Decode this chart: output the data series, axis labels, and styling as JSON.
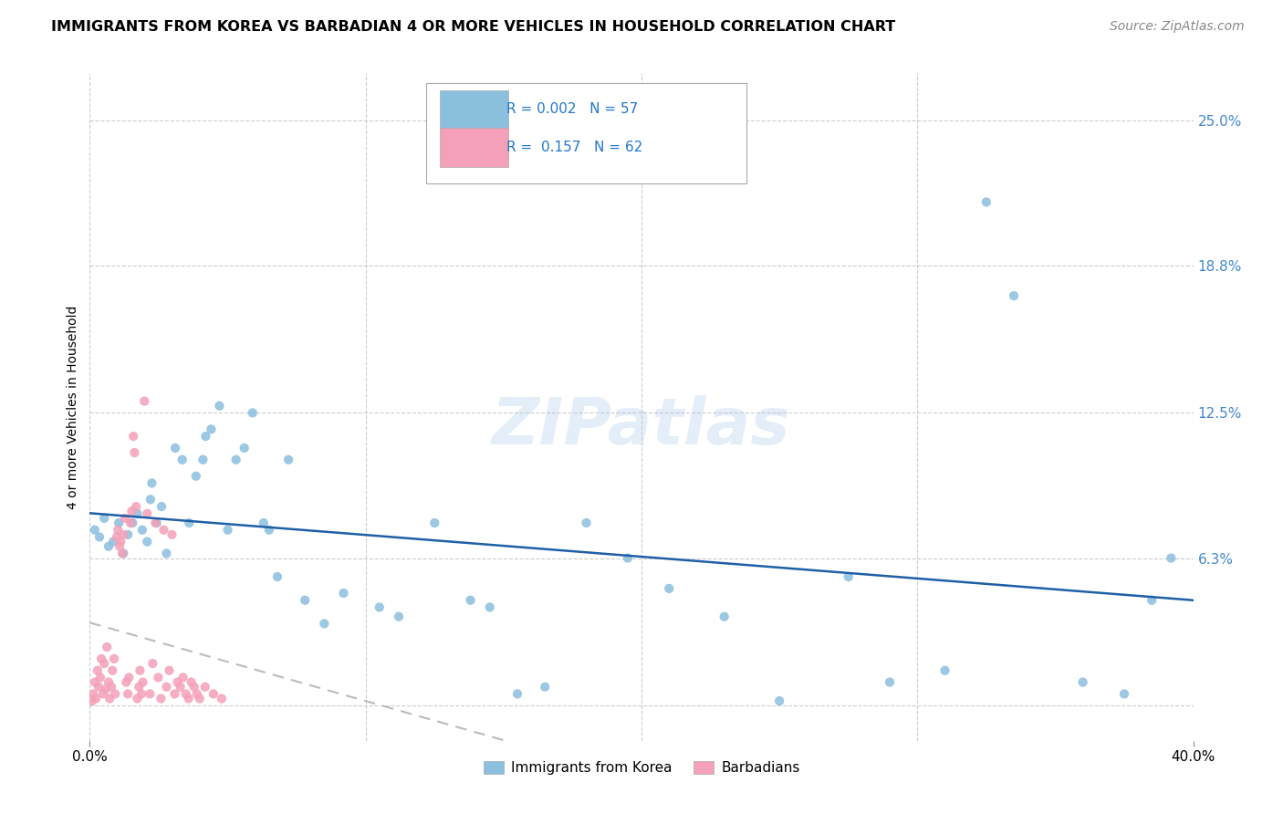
{
  "title": "IMMIGRANTS FROM KOREA VS BARBADIAN 4 OR MORE VEHICLES IN HOUSEHOLD CORRELATION CHART",
  "source": "Source: ZipAtlas.com",
  "ylabel": "4 or more Vehicles in Household",
  "korea_R": "0.002",
  "korea_N": "57",
  "barbadian_R": "0.157",
  "barbadian_N": "62",
  "korea_color": "#8bbfde",
  "barbadian_color": "#f4a0b8",
  "korea_line_color": "#1f5fa6",
  "barbadian_line_color": "#e05080",
  "watermark": "ZIPatlas",
  "xmin": 0.0,
  "xmax": 40.0,
  "ymin": -1.5,
  "ymax": 27.0,
  "ytick_vals": [
    0.0,
    6.3,
    12.5,
    18.8,
    25.0
  ],
  "ytick_labels": [
    "",
    "6.3%",
    "12.5%",
    "18.8%",
    "25.0%"
  ],
  "korea_x": [
    0.18,
    0.35,
    0.52,
    0.68,
    0.85,
    1.05,
    1.22,
    1.38,
    1.55,
    1.72,
    1.9,
    2.08,
    2.25,
    2.42,
    2.6,
    2.78,
    3.1,
    3.35,
    3.6,
    3.85,
    4.1,
    4.4,
    4.7,
    5.0,
    5.3,
    5.6,
    5.9,
    6.3,
    6.8,
    7.2,
    7.8,
    8.5,
    9.2,
    10.5,
    11.2,
    12.5,
    13.8,
    14.5,
    15.5,
    16.5,
    18.0,
    19.5,
    21.0,
    23.0,
    25.0,
    27.5,
    29.0,
    31.0,
    32.5,
    33.5,
    36.0,
    37.5,
    38.5,
    39.2,
    2.2,
    4.2,
    6.5
  ],
  "korea_y": [
    7.5,
    7.2,
    8.0,
    6.8,
    7.0,
    7.8,
    6.5,
    7.3,
    7.8,
    8.2,
    7.5,
    7.0,
    9.5,
    7.8,
    8.5,
    6.5,
    11.0,
    10.5,
    7.8,
    9.8,
    10.5,
    11.8,
    12.8,
    7.5,
    10.5,
    11.0,
    12.5,
    7.8,
    5.5,
    10.5,
    4.5,
    3.5,
    4.8,
    4.2,
    3.8,
    7.8,
    4.5,
    4.2,
    0.5,
    0.8,
    7.8,
    6.3,
    5.0,
    3.8,
    0.2,
    5.5,
    1.0,
    1.5,
    21.5,
    17.5,
    1.0,
    0.5,
    4.5,
    6.3,
    8.8,
    11.5,
    7.5
  ],
  "barb_x": [
    0.08,
    0.12,
    0.18,
    0.22,
    0.28,
    0.32,
    0.38,
    0.42,
    0.48,
    0.52,
    0.58,
    0.62,
    0.68,
    0.72,
    0.78,
    0.82,
    0.88,
    0.92,
    0.98,
    1.02,
    1.08,
    1.12,
    1.18,
    1.22,
    1.28,
    1.32,
    1.38,
    1.42,
    1.48,
    1.52,
    1.58,
    1.62,
    1.68,
    1.72,
    1.78,
    1.82,
    1.88,
    1.92,
    1.98,
    2.08,
    2.18,
    2.28,
    2.38,
    2.48,
    2.58,
    2.68,
    2.78,
    2.88,
    2.98,
    3.08,
    3.18,
    3.28,
    3.38,
    3.48,
    3.58,
    3.68,
    3.78,
    3.88,
    3.98,
    4.18,
    4.48,
    4.78
  ],
  "barb_y": [
    0.2,
    0.5,
    1.0,
    0.3,
    1.5,
    0.8,
    1.2,
    2.0,
    0.5,
    1.8,
    0.7,
    2.5,
    1.0,
    0.3,
    0.8,
    1.5,
    2.0,
    0.5,
    7.2,
    7.5,
    6.8,
    7.0,
    6.5,
    7.3,
    8.0,
    1.0,
    0.5,
    1.2,
    7.8,
    8.3,
    11.5,
    10.8,
    8.5,
    0.3,
    0.8,
    1.5,
    0.5,
    1.0,
    13.0,
    8.2,
    0.5,
    1.8,
    7.8,
    1.2,
    0.3,
    7.5,
    0.8,
    1.5,
    7.3,
    0.5,
    1.0,
    0.8,
    1.2,
    0.5,
    0.3,
    1.0,
    0.8,
    0.5,
    0.3,
    0.8,
    0.5,
    0.3
  ]
}
